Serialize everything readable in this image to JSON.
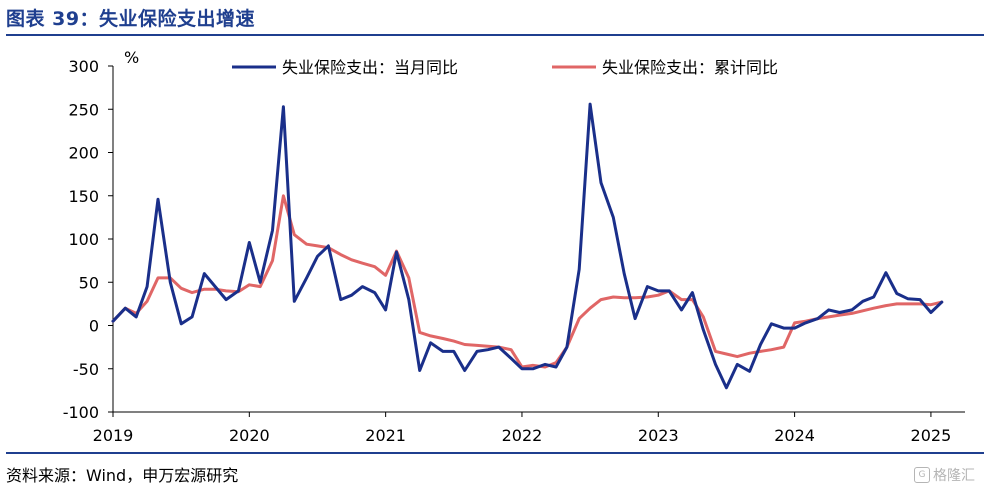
{
  "figure": {
    "title": "图表 39：失业保险支出增速",
    "source": "资料来源：Wind，申万宏源研究",
    "watermark": "格隆汇"
  },
  "colors": {
    "title": "#1f3f8f",
    "monthly": "#1a2f8a",
    "cumulative": "#e06666"
  },
  "chart_data": {
    "type": "line",
    "title": "",
    "unit_label": "%",
    "ylim": [
      -100,
      300
    ],
    "yticks": [
      -100,
      -50,
      0,
      50,
      100,
      150,
      200,
      250,
      300
    ],
    "xlim": [
      2019.0,
      2025.25
    ],
    "year_ticks": [
      2019,
      2020,
      2021,
      2022,
      2023,
      2024,
      2025
    ],
    "grid": false,
    "legend_position": "top",
    "series": [
      {
        "name": "失业保险支出：当月同比",
        "color": "#1a2f8a",
        "points": [
          [
            2019.0,
            5
          ],
          [
            2019.09,
            20
          ],
          [
            2019.17,
            10
          ],
          [
            2019.25,
            45
          ],
          [
            2019.33,
            146
          ],
          [
            2019.42,
            50
          ],
          [
            2019.5,
            2
          ],
          [
            2019.58,
            10
          ],
          [
            2019.67,
            60
          ],
          [
            2019.75,
            45
          ],
          [
            2019.83,
            30
          ],
          [
            2019.92,
            40
          ],
          [
            2020.0,
            96
          ],
          [
            2020.08,
            50
          ],
          [
            2020.17,
            110
          ],
          [
            2020.25,
            253
          ],
          [
            2020.33,
            28
          ],
          [
            2020.42,
            55
          ],
          [
            2020.5,
            80
          ],
          [
            2020.58,
            92
          ],
          [
            2020.67,
            30
          ],
          [
            2020.75,
            35
          ],
          [
            2020.83,
            45
          ],
          [
            2020.92,
            38
          ],
          [
            2021.0,
            18
          ],
          [
            2021.08,
            85
          ],
          [
            2021.17,
            30
          ],
          [
            2021.25,
            -52
          ],
          [
            2021.33,
            -20
          ],
          [
            2021.42,
            -30
          ],
          [
            2021.5,
            -30
          ],
          [
            2021.58,
            -52
          ],
          [
            2021.67,
            -30
          ],
          [
            2021.75,
            -28
          ],
          [
            2021.83,
            -25
          ],
          [
            2021.92,
            -38
          ],
          [
            2022.0,
            -50
          ],
          [
            2022.08,
            -50
          ],
          [
            2022.17,
            -45
          ],
          [
            2022.25,
            -48
          ],
          [
            2022.33,
            -25
          ],
          [
            2022.42,
            65
          ],
          [
            2022.5,
            256
          ],
          [
            2022.58,
            165
          ],
          [
            2022.67,
            125
          ],
          [
            2022.75,
            60
          ],
          [
            2022.83,
            8
          ],
          [
            2022.92,
            45
          ],
          [
            2023.0,
            40
          ],
          [
            2023.08,
            40
          ],
          [
            2023.17,
            18
          ],
          [
            2023.25,
            38
          ],
          [
            2023.33,
            -5
          ],
          [
            2023.42,
            -45
          ],
          [
            2023.5,
            -72
          ],
          [
            2023.58,
            -45
          ],
          [
            2023.67,
            -53
          ],
          [
            2023.75,
            -22
          ],
          [
            2023.83,
            2
          ],
          [
            2023.92,
            -3
          ],
          [
            2024.0,
            -3
          ],
          [
            2024.08,
            3
          ],
          [
            2024.17,
            8
          ],
          [
            2024.25,
            18
          ],
          [
            2024.33,
            15
          ],
          [
            2024.42,
            18
          ],
          [
            2024.5,
            28
          ],
          [
            2024.58,
            33
          ],
          [
            2024.67,
            61
          ],
          [
            2024.75,
            37
          ],
          [
            2024.83,
            31
          ],
          [
            2024.92,
            30
          ],
          [
            2025.0,
            15
          ],
          [
            2025.08,
            27
          ]
        ]
      },
      {
        "name": "失业保险支出：累计同比",
        "color": "#e06666",
        "points": [
          [
            2019.0,
            5
          ],
          [
            2019.09,
            20
          ],
          [
            2019.17,
            14
          ],
          [
            2019.25,
            28
          ],
          [
            2019.33,
            55
          ],
          [
            2019.42,
            55
          ],
          [
            2019.5,
            43
          ],
          [
            2019.58,
            38
          ],
          [
            2019.67,
            42
          ],
          [
            2019.75,
            42
          ],
          [
            2019.83,
            40
          ],
          [
            2019.92,
            39
          ],
          [
            2020.0,
            47
          ],
          [
            2020.08,
            45
          ],
          [
            2020.17,
            75
          ],
          [
            2020.25,
            150
          ],
          [
            2020.33,
            105
          ],
          [
            2020.42,
            94
          ],
          [
            2020.5,
            92
          ],
          [
            2020.58,
            90
          ],
          [
            2020.67,
            82
          ],
          [
            2020.75,
            76
          ],
          [
            2020.83,
            72
          ],
          [
            2020.92,
            68
          ],
          [
            2021.0,
            58
          ],
          [
            2021.08,
            86
          ],
          [
            2021.17,
            55
          ],
          [
            2021.25,
            -8
          ],
          [
            2021.33,
            -12
          ],
          [
            2021.42,
            -15
          ],
          [
            2021.5,
            -18
          ],
          [
            2021.58,
            -22
          ],
          [
            2021.67,
            -23
          ],
          [
            2021.75,
            -24
          ],
          [
            2021.83,
            -25
          ],
          [
            2021.92,
            -28
          ],
          [
            2022.0,
            -48
          ],
          [
            2022.08,
            -46
          ],
          [
            2022.17,
            -48
          ],
          [
            2022.25,
            -43
          ],
          [
            2022.33,
            -25
          ],
          [
            2022.42,
            8
          ],
          [
            2022.5,
            20
          ],
          [
            2022.58,
            30
          ],
          [
            2022.67,
            33
          ],
          [
            2022.75,
            32
          ],
          [
            2022.83,
            32
          ],
          [
            2022.92,
            33
          ],
          [
            2023.0,
            35
          ],
          [
            2023.08,
            40
          ],
          [
            2023.17,
            30
          ],
          [
            2023.25,
            30
          ],
          [
            2023.33,
            10
          ],
          [
            2023.42,
            -30
          ],
          [
            2023.5,
            -33
          ],
          [
            2023.58,
            -36
          ],
          [
            2023.67,
            -32
          ],
          [
            2023.75,
            -30
          ],
          [
            2023.83,
            -28
          ],
          [
            2023.92,
            -25
          ],
          [
            2024.0,
            3
          ],
          [
            2024.08,
            5
          ],
          [
            2024.17,
            8
          ],
          [
            2024.25,
            10
          ],
          [
            2024.33,
            12
          ],
          [
            2024.42,
            14
          ],
          [
            2024.5,
            17
          ],
          [
            2024.58,
            20
          ],
          [
            2024.67,
            23
          ],
          [
            2024.75,
            25
          ],
          [
            2024.83,
            25
          ],
          [
            2024.92,
            25
          ],
          [
            2025.0,
            24
          ],
          [
            2025.08,
            27
          ]
        ]
      }
    ]
  }
}
